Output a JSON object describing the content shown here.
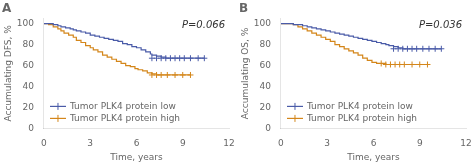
{
  "chart_data": [
    {
      "type": "line",
      "title": "A",
      "annotations": [
        "P=0.066"
      ],
      "x_label": "Time, years",
      "y_label": "Accumulating DFS, %",
      "xlim": [
        0,
        12
      ],
      "ylim": [
        0,
        105
      ],
      "xticks": [
        0,
        3,
        6,
        9,
        12
      ],
      "yticks": [
        0,
        20,
        40,
        60,
        80,
        100
      ],
      "grid": false,
      "legend": "lower left",
      "series": [
        {
          "name": "Tumor PLK4 protein low",
          "color": "#4a5ba8",
          "line_style": "step",
          "marker": "+",
          "x": [
            0,
            0.4,
            0.6,
            0.9,
            1.1,
            1.4,
            1.7,
            1.9,
            2.1,
            2.4,
            2.7,
            3.0,
            3.3,
            3.6,
            3.9,
            4.2,
            4.5,
            4.8,
            5.1,
            5.4,
            5.7,
            6.0,
            6.3,
            6.6,
            6.9,
            7.0,
            7.3,
            7.6,
            7.9,
            8.2,
            8.5,
            8.8,
            9.1,
            9.5,
            10.0,
            10.4
          ],
          "values": [
            100,
            100,
            99,
            98,
            97,
            96,
            95,
            94,
            93,
            92,
            91,
            89,
            88,
            87,
            86,
            85,
            84,
            83,
            81,
            80,
            78,
            77,
            75,
            73,
            71,
            70,
            69,
            68,
            67,
            67,
            67,
            67,
            67,
            67,
            67,
            67
          ],
          "censor_x": [
            7.0,
            7.3,
            7.6,
            7.9,
            8.2,
            8.5,
            8.8,
            9.1,
            9.5,
            10.0,
            10.4
          ],
          "censor_values": [
            67,
            67,
            67,
            67,
            67,
            67,
            67,
            67,
            67,
            67,
            67
          ]
        },
        {
          "name": "Tumor PLK4 protein high",
          "color": "#d4861a",
          "line_style": "step",
          "marker": "+",
          "x": [
            0,
            0.3,
            0.6,
            0.9,
            1.1,
            1.3,
            1.6,
            1.9,
            2.1,
            2.4,
            2.7,
            3.0,
            3.2,
            3.5,
            3.8,
            4.1,
            4.4,
            4.7,
            5.0,
            5.3,
            5.6,
            5.9,
            6.1,
            6.4,
            6.7,
            7.0,
            7.3,
            7.6,
            8.0,
            8.5,
            9.0,
            9.5
          ],
          "values": [
            100,
            99,
            97,
            95,
            93,
            91,
            89,
            87,
            84,
            82,
            79,
            77,
            75,
            73,
            70,
            68,
            66,
            64,
            62,
            60,
            59,
            57,
            56,
            55,
            53,
            52,
            51,
            51,
            51,
            51,
            51,
            51
          ],
          "censor_x": [
            7.0,
            7.3,
            7.6,
            8.0,
            8.5,
            9.0,
            9.5
          ],
          "censor_values": [
            51,
            51,
            51,
            51,
            51,
            51,
            51
          ]
        }
      ]
    },
    {
      "type": "line",
      "title": "B",
      "annotations": [
        "P=0.036"
      ],
      "x_label": "Time, years",
      "y_label": "Accumulating OS, %",
      "xlim": [
        0,
        12
      ],
      "ylim": [
        0,
        105
      ],
      "xticks": [
        0,
        3,
        6,
        9,
        12
      ],
      "yticks": [
        0,
        20,
        40,
        60,
        80,
        100
      ],
      "grid": false,
      "legend": "lower left",
      "series": [
        {
          "name": "Tumor PLK4 protein low",
          "color": "#4a5ba8",
          "line_style": "step",
          "marker": "+",
          "x": [
            0,
            0.5,
            0.8,
            1.1,
            1.4,
            1.7,
            2.0,
            2.3,
            2.6,
            2.9,
            3.2,
            3.5,
            3.8,
            4.1,
            4.4,
            4.7,
            5.0,
            5.3,
            5.6,
            5.9,
            6.2,
            6.5,
            6.8,
            7.0,
            7.3,
            7.6,
            7.9,
            8.2,
            8.5,
            8.8,
            9.2,
            9.6,
            10.0,
            10.4
          ],
          "values": [
            100,
            100,
            99,
            99,
            98,
            97,
            96,
            95,
            94,
            93,
            92,
            91,
            90,
            89,
            88,
            87,
            86,
            85,
            84,
            83,
            82,
            81,
            80,
            79,
            78,
            77,
            76,
            76,
            76,
            76,
            76,
            76,
            76,
            76
          ],
          "censor_x": [
            7.3,
            7.6,
            7.9,
            8.2,
            8.5,
            8.8,
            9.2,
            9.6,
            10.0,
            10.4
          ],
          "censor_values": [
            76,
            76,
            76,
            76,
            76,
            76,
            76,
            76,
            76,
            76
          ]
        },
        {
          "name": "Tumor PLK4 protein high",
          "color": "#d4861a",
          "line_style": "step",
          "marker": "+",
          "x": [
            0,
            0.5,
            0.8,
            1.1,
            1.4,
            1.7,
            2.0,
            2.3,
            2.6,
            2.9,
            3.2,
            3.5,
            3.8,
            4.1,
            4.4,
            4.7,
            5.0,
            5.3,
            5.6,
            5.9,
            6.2,
            6.5,
            6.8,
            7.1,
            7.4,
            7.7,
            8.0,
            8.5,
            9.0,
            9.5
          ],
          "values": [
            100,
            100,
            99,
            97,
            95,
            93,
            91,
            89,
            87,
            85,
            83,
            80,
            78,
            76,
            74,
            72,
            70,
            67,
            65,
            63,
            62,
            62,
            61,
            61,
            61,
            61,
            61,
            61,
            61,
            61
          ],
          "censor_x": [
            6.5,
            6.8,
            7.1,
            7.4,
            7.7,
            8.0,
            8.5,
            9.0,
            9.5
          ],
          "censor_values": [
            62,
            61,
            61,
            61,
            61,
            61,
            61,
            61,
            61
          ]
        }
      ]
    }
  ]
}
